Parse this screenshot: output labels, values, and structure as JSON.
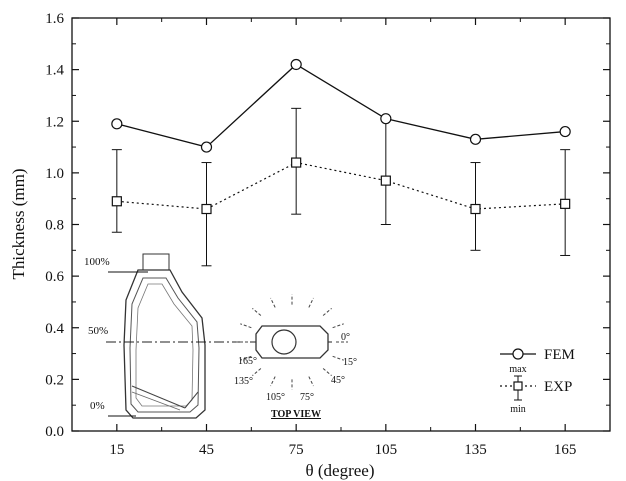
{
  "chart_data": {
    "type": "line",
    "xlabel": "θ (degree)",
    "ylabel": "Thickness (mm)",
    "x": [
      15,
      45,
      75,
      105,
      135,
      165
    ],
    "xticks": [
      "15",
      "45",
      "75",
      "105",
      "135",
      "165"
    ],
    "xlim": [
      0,
      180
    ],
    "ylim": [
      0.0,
      1.6
    ],
    "yticks": [
      "0.0",
      "0.2",
      "0.4",
      "0.6",
      "0.8",
      "1.0",
      "1.2",
      "1.4",
      "1.6"
    ],
    "grid": false,
    "legend_position": "bottom-right",
    "series": [
      {
        "name": "FEM",
        "marker": "circle",
        "line_style": "solid",
        "values": [
          1.19,
          1.1,
          1.42,
          1.21,
          1.13,
          1.16
        ]
      },
      {
        "name": "EXP",
        "marker": "square",
        "line_style": "dotted",
        "values": [
          0.89,
          0.86,
          1.04,
          0.97,
          0.86,
          0.88
        ],
        "error_max": [
          1.09,
          1.04,
          1.25,
          1.21,
          1.04,
          1.09
        ],
        "error_min": [
          0.77,
          0.64,
          0.84,
          0.8,
          0.7,
          0.68
        ]
      }
    ],
    "legend_error_labels": {
      "max": "max",
      "min": "min"
    },
    "inset": {
      "percent_labels": [
        "100%",
        "50%",
        "0%"
      ],
      "angle_labels": [
        "0°",
        "15°",
        "45°",
        "75°",
        "105°",
        "135°",
        "165°"
      ],
      "caption": "TOP VIEW"
    }
  }
}
